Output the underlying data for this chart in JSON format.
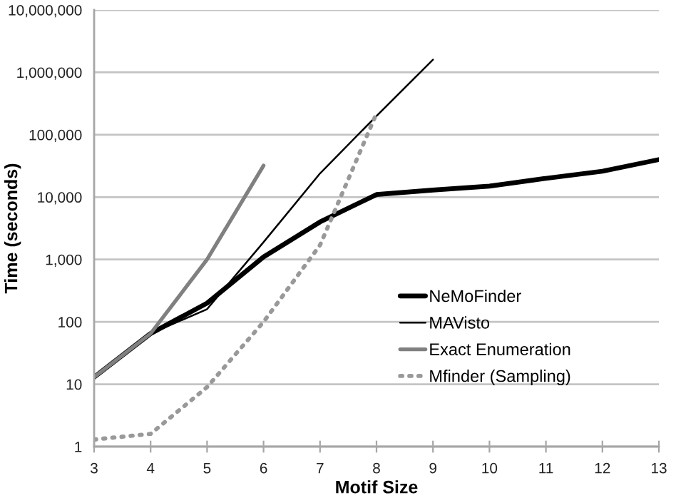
{
  "chart_data": {
    "type": "line",
    "xlabel": "Motif Size",
    "ylabel": "Time (seconds)",
    "xlim": [
      3,
      13
    ],
    "xticks": [
      3,
      4,
      5,
      6,
      7,
      8,
      9,
      10,
      11,
      12,
      13
    ],
    "ylim": [
      1,
      10000000
    ],
    "yticks": [
      {
        "value": 1,
        "label": "1"
      },
      {
        "value": 10,
        "label": "10"
      },
      {
        "value": 100,
        "label": "100"
      },
      {
        "value": 1000,
        "label": "1,000"
      },
      {
        "value": 10000,
        "label": "10,000"
      },
      {
        "value": 100000,
        "label": "100,000"
      },
      {
        "value": 1000000,
        "label": "1,000,000"
      },
      {
        "value": 10000000,
        "label": "10,000,000"
      }
    ],
    "log": "y",
    "grid": "y",
    "legend": "center right",
    "marker": "none",
    "series": [
      {
        "name": "NeMoFinder",
        "color": "#000000",
        "line_style": "solid",
        "x": [
          3,
          4,
          5,
          6,
          7,
          8,
          9,
          10,
          11,
          12,
          13
        ],
        "values": [
          13,
          65,
          200,
          1100,
          4000,
          11000,
          13000,
          15000,
          20000,
          26000,
          40000
        ]
      },
      {
        "name": "MAVisto",
        "color": "#000000",
        "line_style": "solid",
        "x": [
          3,
          4,
          5,
          6,
          7,
          8,
          9
        ],
        "values": [
          13,
          65,
          160,
          1900,
          24000,
          200000,
          1600000
        ]
      },
      {
        "name": "Exact Enumeration",
        "color": "#808080",
        "line_style": "solid",
        "x": [
          3,
          4,
          5,
          6
        ],
        "values": [
          13,
          65,
          1000,
          32000
        ]
      },
      {
        "name": "Mfinder (Sampling)",
        "color": "#999999",
        "line_style": "dotted",
        "x": [
          3,
          4,
          5,
          6,
          7,
          8
        ],
        "values": [
          1.3,
          1.6,
          9,
          100,
          1700,
          220000
        ]
      }
    ]
  }
}
